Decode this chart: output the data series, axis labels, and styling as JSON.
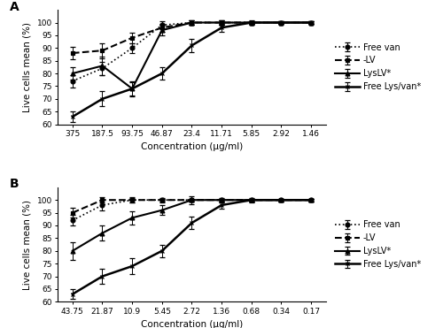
{
  "panel_A": {
    "x_labels": [
      "375",
      "187.5",
      "93.75",
      "46.87",
      "23.4",
      "11.71",
      "5.85",
      "2.92",
      "1.46"
    ],
    "xlabel": "Concentration (μg/ml)",
    "ylabel": "Live cells mean (%)",
    "ylim": [
      60,
      105
    ],
    "yticks": [
      60,
      65,
      70,
      75,
      80,
      85,
      90,
      95,
      100
    ],
    "series": [
      {
        "label": "Free van",
        "y": [
          77,
          82,
          90,
          99,
          100,
          100,
          100,
          100,
          100
        ],
        "yerr": [
          2.5,
          2.5,
          2.0,
          1.5,
          1.0,
          0.8,
          0.5,
          0.5,
          0.5
        ],
        "linestyle": "dotted",
        "marker": "o",
        "linewidth": 1.2
      },
      {
        "label": "-LV",
        "y": [
          88,
          89,
          94,
          98,
          100,
          100,
          100,
          100,
          100
        ],
        "yerr": [
          2.5,
          3.0,
          2.0,
          1.5,
          0.8,
          0.8,
          0.5,
          0.5,
          0.5
        ],
        "linestyle": "dashed",
        "marker": "s",
        "linewidth": 1.5
      },
      {
        "label": "LysLV*",
        "y": [
          80,
          83,
          74,
          97,
          100,
          100,
          100,
          100,
          100
        ],
        "yerr": [
          2.5,
          3.5,
          2.5,
          2.0,
          1.0,
          0.8,
          0.5,
          0.5,
          0.5
        ],
        "linestyle": "solid",
        "marker": "^",
        "linewidth": 1.5
      },
      {
        "label": "Free Lys/van*",
        "y": [
          63,
          70,
          74,
          80,
          91,
          98,
          100,
          100,
          100
        ],
        "yerr": [
          2.0,
          3.0,
          3.0,
          2.5,
          2.5,
          1.5,
          0.8,
          0.5,
          0.5
        ],
        "linestyle": "solid",
        "marker": "x",
        "linewidth": 1.8
      }
    ]
  },
  "panel_B": {
    "x_labels": [
      "43.75",
      "21.87",
      "10.9",
      "5.45",
      "2.72",
      "1.36",
      "0.68",
      "0.34",
      "0.17"
    ],
    "xlabel": "Concentration (μg/ml)",
    "ylabel": "Live cells mean (%)",
    "ylim": [
      60,
      105
    ],
    "yticks": [
      60,
      65,
      70,
      75,
      80,
      85,
      90,
      95,
      100
    ],
    "series": [
      {
        "label": "Free van",
        "y": [
          92,
          98,
          100,
          100,
          100,
          100,
          100,
          100,
          100
        ],
        "yerr": [
          2.0,
          2.0,
          1.0,
          0.8,
          0.5,
          0.5,
          0.5,
          0.5,
          0.5
        ],
        "linestyle": "dotted",
        "marker": "o",
        "linewidth": 1.2
      },
      {
        "label": "-LV",
        "y": [
          95,
          100,
          100,
          100,
          100,
          100,
          100,
          100,
          100
        ],
        "yerr": [
          2.0,
          1.0,
          0.8,
          0.5,
          0.5,
          0.5,
          0.5,
          0.5,
          0.5
        ],
        "linestyle": "dashed",
        "marker": "s",
        "linewidth": 1.5
      },
      {
        "label": "LysLV*",
        "y": [
          80,
          87,
          93,
          96,
          100,
          100,
          100,
          100,
          100
        ],
        "yerr": [
          3.5,
          3.0,
          2.5,
          2.0,
          1.5,
          0.8,
          0.5,
          0.5,
          0.5
        ],
        "linestyle": "solid",
        "marker": "^",
        "linewidth": 1.5
      },
      {
        "label": "Free Lys/van*",
        "y": [
          63,
          70,
          74,
          80,
          91,
          98,
          100,
          100,
          100
        ],
        "yerr": [
          2.0,
          3.0,
          3.0,
          2.5,
          2.5,
          1.5,
          0.8,
          0.5,
          0.5
        ],
        "linestyle": "solid",
        "marker": "x",
        "linewidth": 1.8
      }
    ]
  },
  "background_color": "#ffffff",
  "panel_label_fontsize": 10,
  "axis_label_fontsize": 7.5,
  "tick_fontsize": 6.5,
  "legend_fontsize": 7,
  "marker_size": 3.5,
  "color": "black"
}
